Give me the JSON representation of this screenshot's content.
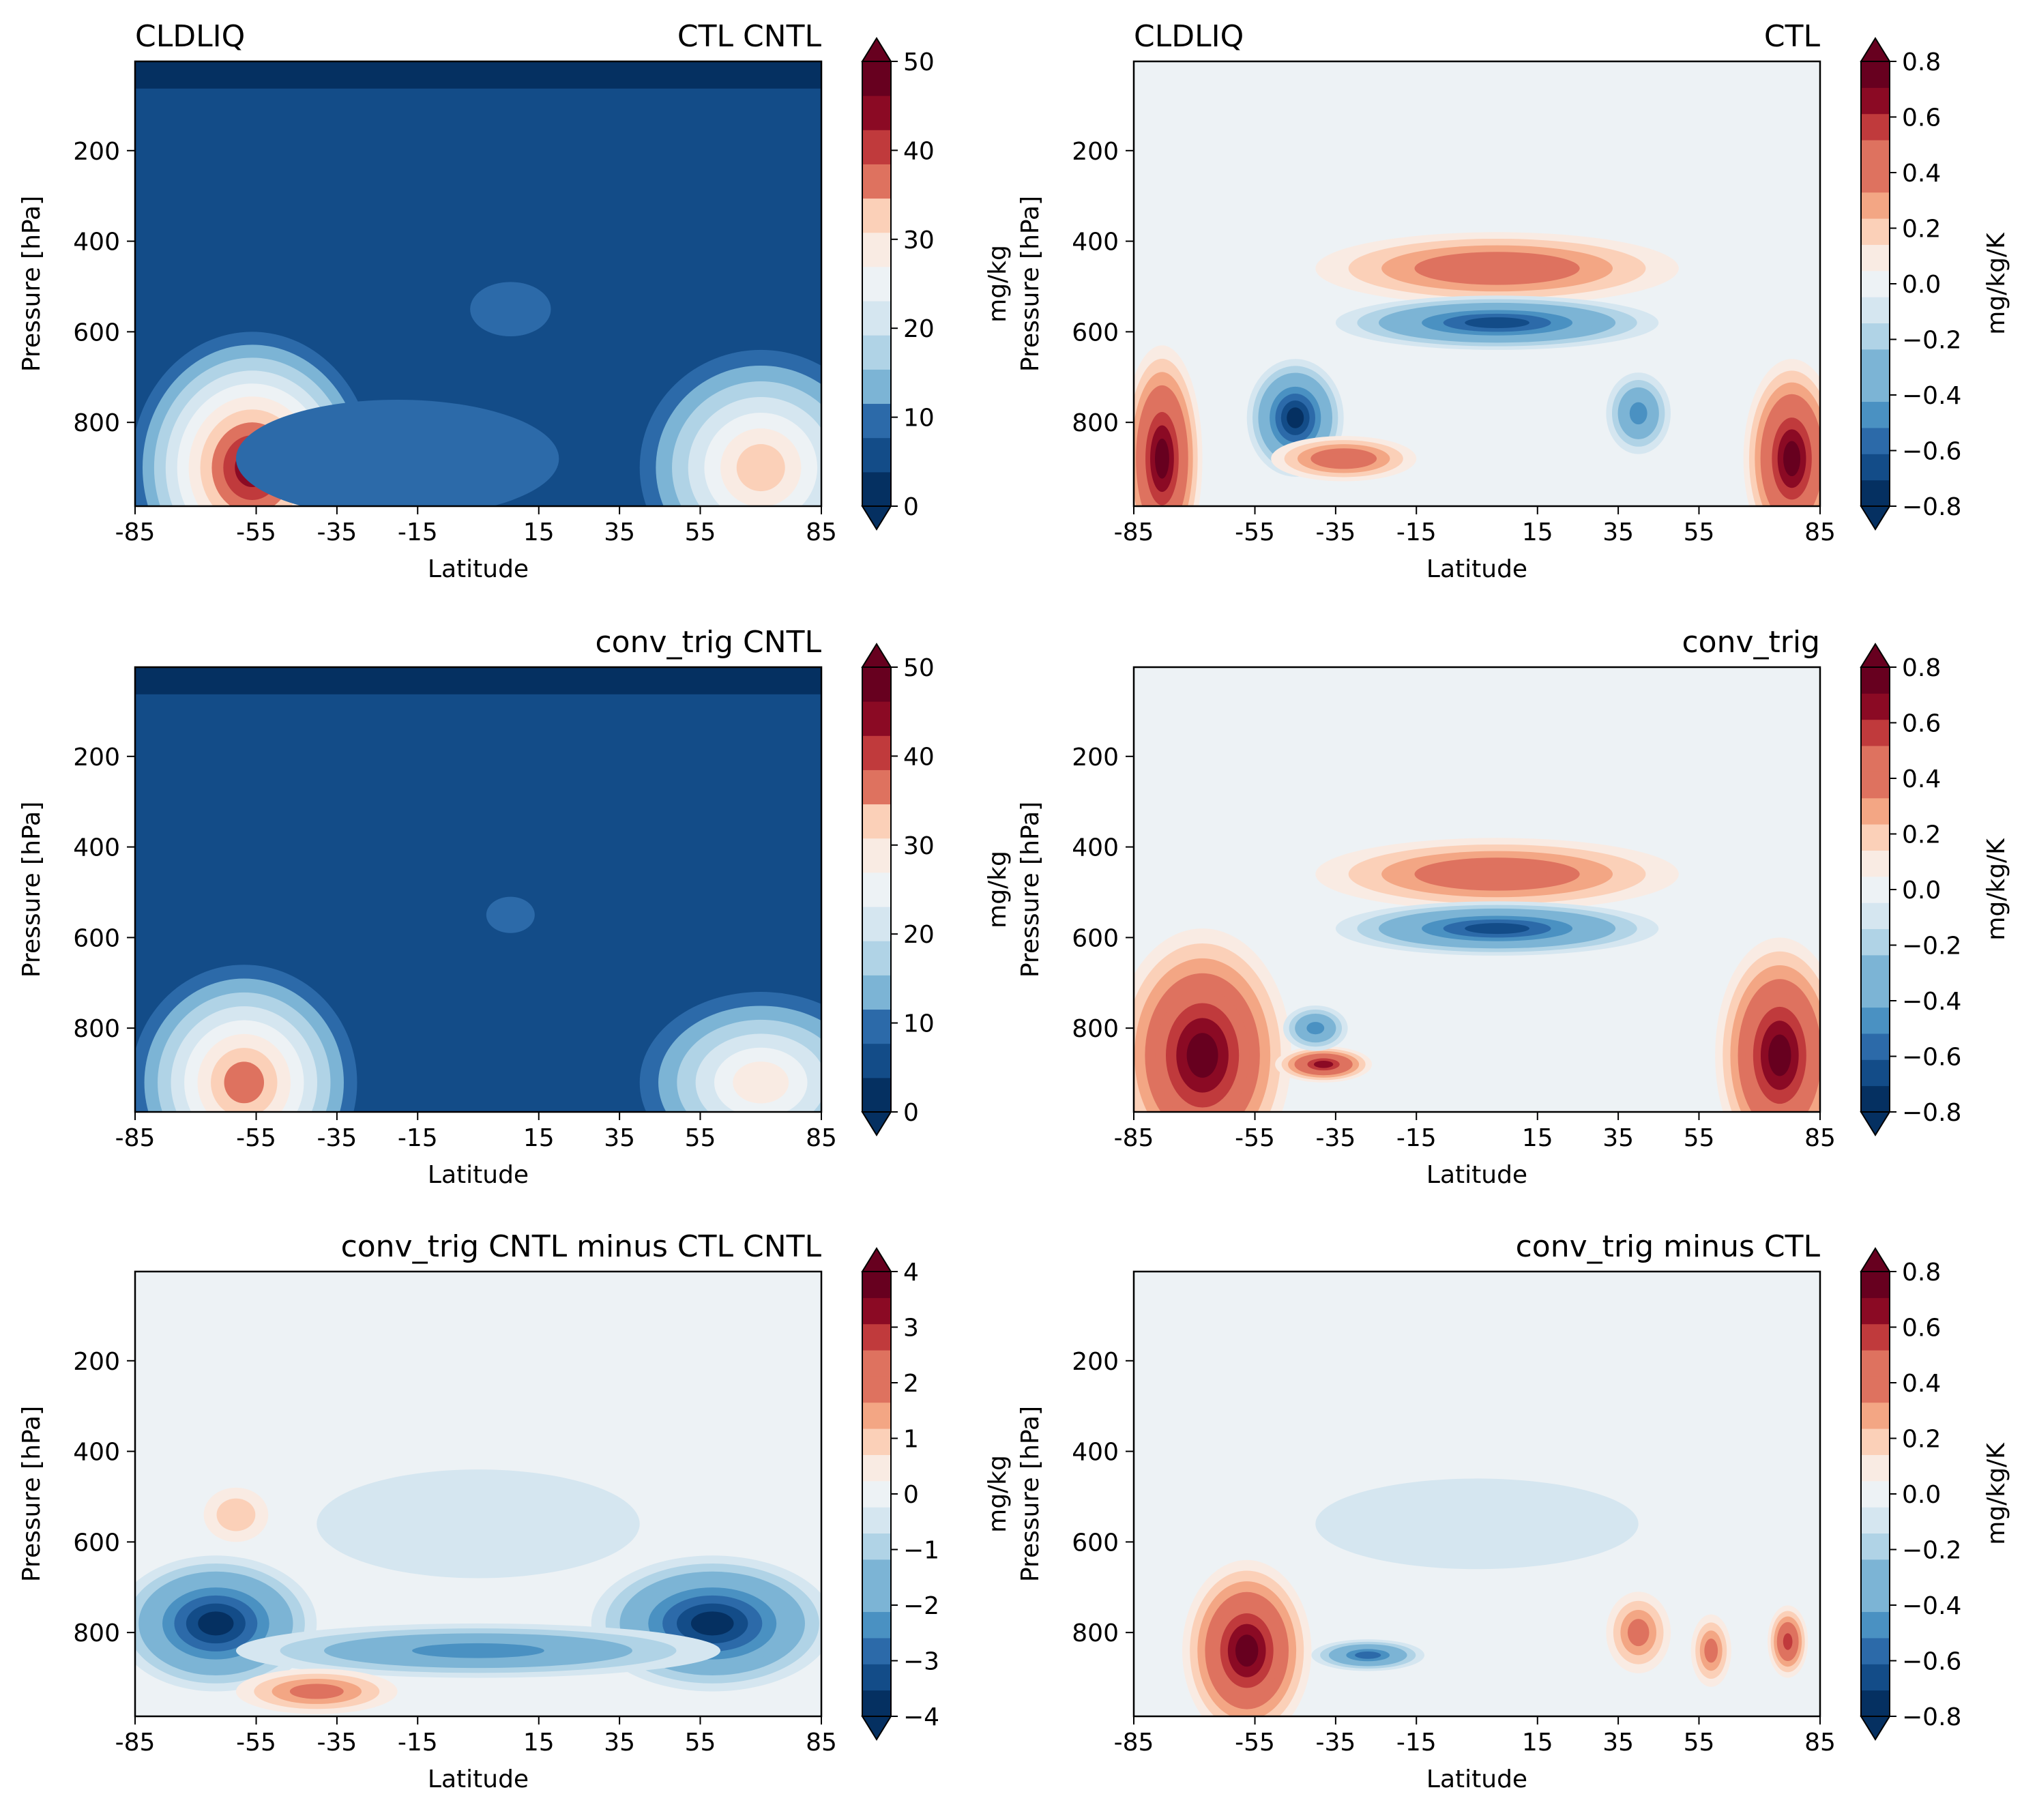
{
  "figure": {
    "title": "CLDLIQ",
    "colors": {
      "cmap": [
        "#053061",
        "#134c88",
        "#2c6aa9",
        "#4a91c2",
        "#7cb4d5",
        "#b0d3e6",
        "#d5e6f0",
        "#edf2f5",
        "#f9ebe3",
        "#fbd0b8",
        "#f3a684",
        "#de725f",
        "#c03a3c",
        "#8b0a24",
        "#67001f"
      ]
    }
  },
  "chart_data": [
    {
      "type": "contourf",
      "left_title": "CLDLIQ",
      "right_title": "CTL CNTL",
      "xlabel": "Latitude",
      "ylabel": "Pressure [hPa]",
      "xlim": [
        -85,
        85
      ],
      "ylim": [
        985,
        3
      ],
      "xticks": [
        "-85",
        "-55",
        "-35",
        "-15",
        "15",
        "35",
        "55",
        "85"
      ],
      "yticks": [
        "200",
        "400",
        "600",
        "800"
      ],
      "colorbar": {
        "label": "mg/kg",
        "ticks": [
          "0",
          "10",
          "20",
          "30",
          "40",
          "50"
        ],
        "min": 0,
        "max": 50,
        "levels": 13,
        "extend": "both"
      },
      "background_level": 1,
      "features": [
        {
          "name": "top-layer",
          "lat": 0,
          "p": 40,
          "wlat": 200,
          "wp": 60,
          "level": 0,
          "shape": "rect"
        },
        {
          "name": "sh-maximum",
          "lat": -56,
          "p": 900,
          "wlat": 30,
          "wp": 300,
          "level": 11
        },
        {
          "name": "nh-maximum",
          "lat": 70,
          "p": 900,
          "wlat": 30,
          "wp": 260,
          "level": 8
        },
        {
          "name": "mid-blob",
          "lat": 8,
          "p": 550,
          "wlat": 10,
          "wp": 60,
          "level": 2
        },
        {
          "name": "low-band",
          "lat": -20,
          "p": 880,
          "wlat": 40,
          "wp": 130,
          "level": 2
        }
      ]
    },
    {
      "type": "contourf",
      "left_title": "CLDLIQ",
      "right_title": "CTL",
      "xlabel": "Latitude",
      "ylabel": "Pressure [hPa]",
      "xlim": [
        -85,
        85
      ],
      "ylim": [
        985,
        3
      ],
      "xticks": [
        "-85",
        "-55",
        "-35",
        "-15",
        "15",
        "35",
        "55",
        "85"
      ],
      "yticks": [
        "200",
        "400",
        "600",
        "800"
      ],
      "colorbar": {
        "label": "mg/kg/K",
        "ticks": [
          "0.8",
          "0.6",
          "0.4",
          "0.2",
          "0.0",
          "−0.2",
          "−0.4",
          "−0.6",
          "−0.8"
        ],
        "min": -0.8,
        "max": 0.8,
        "levels": 17,
        "extend": "both"
      },
      "background_level": 8,
      "features": [
        {
          "name": "upper-positive",
          "lat": 5,
          "p": 460,
          "wlat": 45,
          "wp": 80,
          "level": 13
        },
        {
          "name": "mid-negative",
          "lat": 5,
          "p": 580,
          "wlat": 40,
          "wp": 60,
          "level": 1
        },
        {
          "name": "sh-negative",
          "lat": -45,
          "p": 790,
          "wlat": 12,
          "wp": 130,
          "level": 0
        },
        {
          "name": "sh-positive",
          "lat": -78,
          "p": 880,
          "wlat": 10,
          "wp": 250,
          "level": 16
        },
        {
          "name": "nh-positive",
          "lat": 78,
          "p": 880,
          "wlat": 12,
          "wp": 220,
          "level": 16
        },
        {
          "name": "low-positive",
          "lat": -33,
          "p": 880,
          "wlat": 18,
          "wp": 50,
          "level": 13
        },
        {
          "name": "nh-negative",
          "lat": 40,
          "p": 780,
          "wlat": 8,
          "wp": 90,
          "level": 3
        }
      ]
    },
    {
      "type": "contourf",
      "left_title": "",
      "right_title": "conv_trig CNTL",
      "xlabel": "Latitude",
      "ylabel": "Pressure [hPa]",
      "xlim": [
        -85,
        85
      ],
      "ylim": [
        985,
        3
      ],
      "xticks": [
        "-85",
        "-55",
        "-35",
        "-15",
        "15",
        "35",
        "55",
        "85"
      ],
      "yticks": [
        "200",
        "400",
        "600",
        "800"
      ],
      "colorbar": {
        "label": "mg/kg",
        "ticks": [
          "0",
          "10",
          "20",
          "30",
          "40",
          "50"
        ],
        "min": 0,
        "max": 50,
        "levels": 13,
        "extend": "both"
      },
      "background_level": 1,
      "features": [
        {
          "name": "top-layer",
          "lat": 0,
          "p": 40,
          "wlat": 200,
          "wp": 60,
          "level": 0,
          "shape": "rect"
        },
        {
          "name": "sh-maximum",
          "lat": -58,
          "p": 920,
          "wlat": 28,
          "wp": 260,
          "level": 9
        },
        {
          "name": "nh-maximum",
          "lat": 70,
          "p": 920,
          "wlat": 30,
          "wp": 200,
          "level": 7
        },
        {
          "name": "mid-blob",
          "lat": 8,
          "p": 550,
          "wlat": 6,
          "wp": 40,
          "level": 2
        }
      ]
    },
    {
      "type": "contourf",
      "left_title": "",
      "right_title": "conv_trig",
      "xlabel": "Latitude",
      "ylabel": "Pressure [hPa]",
      "xlim": [
        -85,
        85
      ],
      "ylim": [
        985,
        3
      ],
      "xticks": [
        "-85",
        "-55",
        "-35",
        "-15",
        "15",
        "35",
        "55",
        "85"
      ],
      "yticks": [
        "200",
        "400",
        "600",
        "800"
      ],
      "colorbar": {
        "label": "mg/kg/K",
        "ticks": [
          "0.8",
          "0.6",
          "0.4",
          "0.2",
          "0.0",
          "−0.2",
          "−0.4",
          "−0.6",
          "−0.8"
        ],
        "min": -0.8,
        "max": 0.8,
        "levels": 17,
        "extend": "both"
      },
      "background_level": 8,
      "features": [
        {
          "name": "upper-positive",
          "lat": 5,
          "p": 460,
          "wlat": 45,
          "wp": 80,
          "level": 13
        },
        {
          "name": "mid-negative",
          "lat": 5,
          "p": 580,
          "wlat": 40,
          "wp": 60,
          "level": 1
        },
        {
          "name": "sh-positive",
          "lat": -68,
          "p": 860,
          "wlat": 22,
          "wp": 280,
          "level": 16
        },
        {
          "name": "nh-positive",
          "lat": 75,
          "p": 860,
          "wlat": 16,
          "wp": 260,
          "level": 16
        },
        {
          "name": "low-positive",
          "lat": -38,
          "p": 880,
          "wlat": 12,
          "wp": 40,
          "level": 15
        },
        {
          "name": "sh-negative",
          "lat": -40,
          "p": 800,
          "wlat": 8,
          "wp": 50,
          "level": 3
        }
      ]
    },
    {
      "type": "contourf",
      "left_title": "",
      "right_title": "conv_trig CNTL minus CTL CNTL",
      "xlabel": "Latitude",
      "ylabel": "Pressure [hPa]",
      "xlim": [
        -85,
        85
      ],
      "ylim": [
        985,
        3
      ],
      "xticks": [
        "-85",
        "-55",
        "-35",
        "-15",
        "15",
        "35",
        "55",
        "85"
      ],
      "yticks": [
        "200",
        "400",
        "600",
        "800"
      ],
      "colorbar": {
        "label": "mg/kg",
        "ticks": [
          "4",
          "3",
          "2",
          "1",
          "0",
          "−1",
          "−2",
          "−3",
          "−4"
        ],
        "min": -4,
        "max": 4,
        "levels": 17,
        "extend": "both"
      },
      "background_level": 8,
      "features": [
        {
          "name": "mid-neutral",
          "lat": 0,
          "p": 560,
          "wlat": 40,
          "wp": 120,
          "level": 7
        },
        {
          "name": "sh-negative",
          "lat": -65,
          "p": 780,
          "wlat": 25,
          "wp": 150,
          "level": 0
        },
        {
          "name": "nh-negative",
          "lat": 58,
          "p": 780,
          "wlat": 30,
          "wp": 150,
          "level": 0
        },
        {
          "name": "band-negative",
          "lat": 0,
          "p": 840,
          "wlat": 60,
          "wp": 60,
          "level": 3
        },
        {
          "name": "sh-positive",
          "lat": -40,
          "p": 930,
          "wlat": 20,
          "wp": 50,
          "level": 12
        },
        {
          "name": "upper-positive",
          "lat": -60,
          "p": 540,
          "wlat": 8,
          "wp": 60,
          "level": 10
        }
      ]
    },
    {
      "type": "contourf",
      "left_title": "",
      "right_title": "conv_trig minus CTL",
      "xlabel": "Latitude",
      "ylabel": "Pressure [hPa]",
      "xlim": [
        -85,
        85
      ],
      "ylim": [
        985,
        3
      ],
      "xticks": [
        "-85",
        "-55",
        "-35",
        "-15",
        "15",
        "35",
        "55",
        "85"
      ],
      "yticks": [
        "200",
        "400",
        "600",
        "800"
      ],
      "colorbar": {
        "label": "mg/kg/K",
        "ticks": [
          "0.8",
          "0.6",
          "0.4",
          "0.2",
          "0.0",
          "−0.2",
          "−0.4",
          "−0.6",
          "−0.8"
        ],
        "min": -0.8,
        "max": 0.8,
        "levels": 17,
        "extend": "both"
      },
      "background_level": 8,
      "features": [
        {
          "name": "mid-neutral",
          "lat": 0,
          "p": 560,
          "wlat": 40,
          "wp": 100,
          "level": 7
        },
        {
          "name": "sh-positive",
          "lat": -57,
          "p": 840,
          "wlat": 16,
          "wp": 200,
          "level": 16
        },
        {
          "name": "low-negative",
          "lat": -27,
          "p": 850,
          "wlat": 14,
          "wp": 35,
          "level": 2
        },
        {
          "name": "nh-positive-1",
          "lat": 40,
          "p": 800,
          "wlat": 8,
          "wp": 90,
          "level": 12
        },
        {
          "name": "nh-positive-2",
          "lat": 58,
          "p": 840,
          "wlat": 5,
          "wp": 80,
          "level": 12
        },
        {
          "name": "nh-positive-3",
          "lat": 77,
          "p": 820,
          "wlat": 5,
          "wp": 80,
          "level": 14
        }
      ]
    }
  ]
}
